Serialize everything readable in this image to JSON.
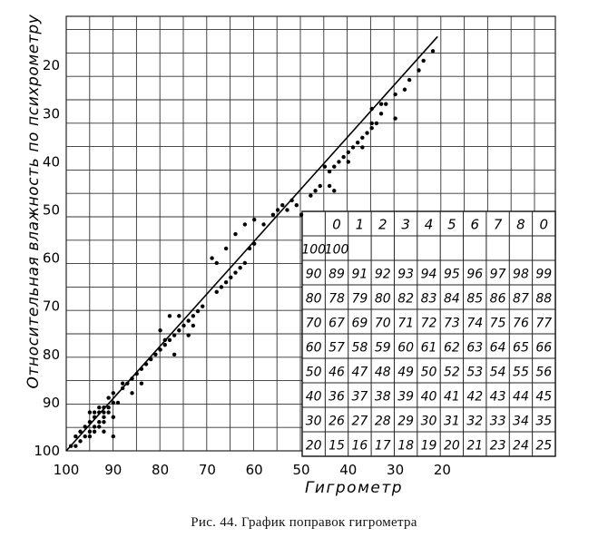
{
  "caption": "Рис. 44. График поправок гигрометра",
  "chart_data": {
    "type": "scatter",
    "xlabel": "Гигрометр",
    "ylabel": "Относительная влажность по психрометру",
    "xlim": [
      100,
      16
    ],
    "ylim": [
      100,
      10
    ],
    "x_ticks": [
      "100",
      "90",
      "80",
      "70",
      "60",
      "50",
      "40",
      "30",
      "20"
    ],
    "y_ticks": [
      "20",
      "30",
      "40",
      "50",
      "60",
      "70",
      "80",
      "90",
      "100"
    ],
    "grid": true,
    "series": [
      {
        "kind": "points",
        "points": [
          [
            99,
            99
          ],
          [
            98,
            99
          ],
          [
            97,
            98
          ],
          [
            98,
            97
          ],
          [
            96,
            97
          ],
          [
            97,
            96
          ],
          [
            95,
            96
          ],
          [
            96,
            95
          ],
          [
            94,
            95
          ],
          [
            95,
            94
          ],
          [
            93,
            94
          ],
          [
            94,
            93
          ],
          [
            92,
            92
          ],
          [
            93,
            92
          ],
          [
            91,
            91
          ],
          [
            92,
            91
          ],
          [
            90,
            90
          ],
          [
            91,
            89
          ],
          [
            92,
            93
          ],
          [
            93,
            95
          ],
          [
            94,
            96
          ],
          [
            95,
            97
          ],
          [
            93,
            91
          ],
          [
            92,
            94
          ],
          [
            91,
            92
          ],
          [
            90,
            93
          ],
          [
            89,
            90
          ],
          [
            90,
            88
          ],
          [
            88,
            87
          ],
          [
            87,
            86
          ],
          [
            86,
            85
          ],
          [
            85,
            84
          ],
          [
            84,
            83
          ],
          [
            83,
            82
          ],
          [
            82,
            81
          ],
          [
            84,
            86
          ],
          [
            86,
            88
          ],
          [
            88,
            86
          ],
          [
            90,
            97
          ],
          [
            94,
            92
          ],
          [
            95,
            92
          ],
          [
            92,
            96
          ],
          [
            80,
            79
          ],
          [
            81,
            80
          ],
          [
            79,
            78
          ],
          [
            78,
            77
          ],
          [
            77,
            76
          ],
          [
            76,
            75
          ],
          [
            75,
            74
          ],
          [
            74,
            73
          ],
          [
            73,
            72
          ],
          [
            72,
            71
          ],
          [
            71,
            70
          ],
          [
            79,
            77
          ],
          [
            78,
            72
          ],
          [
            80,
            75
          ],
          [
            77,
            80
          ],
          [
            76,
            72
          ],
          [
            74,
            76
          ],
          [
            73,
            74
          ],
          [
            68,
            67
          ],
          [
            67,
            66
          ],
          [
            66,
            65
          ],
          [
            65,
            64
          ],
          [
            64,
            63
          ],
          [
            63,
            62
          ],
          [
            62,
            61
          ],
          [
            61,
            58
          ],
          [
            60,
            57
          ],
          [
            69,
            60
          ],
          [
            68,
            61
          ],
          [
            66,
            58
          ],
          [
            64,
            55
          ],
          [
            62,
            53
          ],
          [
            60,
            52
          ],
          [
            58,
            53
          ],
          [
            56,
            51
          ],
          [
            55,
            50
          ],
          [
            54,
            49
          ],
          [
            53,
            50
          ],
          [
            52,
            48
          ],
          [
            51,
            49
          ],
          [
            50,
            51
          ],
          [
            48,
            47
          ],
          [
            47,
            46
          ],
          [
            46,
            45
          ],
          [
            44,
            42
          ],
          [
            43,
            41
          ],
          [
            42,
            40
          ],
          [
            41,
            39
          ],
          [
            40,
            38
          ],
          [
            39,
            37
          ],
          [
            38,
            36
          ],
          [
            37,
            35
          ],
          [
            36,
            34
          ],
          [
            35,
            33
          ],
          [
            34,
            32
          ],
          [
            33,
            30
          ],
          [
            32,
            28
          ],
          [
            45,
            41
          ],
          [
            44,
            45
          ],
          [
            43,
            46
          ],
          [
            40,
            40
          ],
          [
            37,
            37
          ],
          [
            35,
            29
          ],
          [
            30,
            31
          ],
          [
            28,
            25
          ],
          [
            27,
            23
          ],
          [
            25,
            21
          ],
          [
            24,
            19
          ],
          [
            22,
            17
          ],
          [
            35,
            32
          ],
          [
            33,
            28
          ],
          [
            30,
            26
          ]
        ]
      },
      {
        "kind": "line",
        "points": [
          [
            100,
            100
          ],
          [
            21,
            14
          ]
        ]
      }
    ],
    "table": {
      "header": [
        "0",
        "1",
        "2",
        "3",
        "4",
        "5",
        "6",
        "7",
        "8",
        "0"
      ],
      "rows": [
        {
          "label": "100",
          "values": [
            "100",
            "",
            "",
            "",
            "",
            "",
            "",
            "",
            "",
            ""
          ]
        },
        {
          "label": "90",
          "values": [
            "89",
            "91",
            "92",
            "93",
            "94",
            "95",
            "96",
            "97",
            "98",
            "99"
          ]
        },
        {
          "label": "80",
          "values": [
            "78",
            "79",
            "80",
            "82",
            "83",
            "84",
            "85",
            "86",
            "87",
            "88"
          ]
        },
        {
          "label": "70",
          "values": [
            "67",
            "69",
            "70",
            "71",
            "72",
            "73",
            "74",
            "75",
            "76",
            "77"
          ]
        },
        {
          "label": "60",
          "values": [
            "57",
            "58",
            "59",
            "60",
            "61",
            "62",
            "63",
            "64",
            "65",
            "66"
          ]
        },
        {
          "label": "50",
          "values": [
            "46",
            "47",
            "48",
            "49",
            "50",
            "52",
            "53",
            "54",
            "55",
            "56"
          ]
        },
        {
          "label": "40",
          "values": [
            "36",
            "37",
            "38",
            "39",
            "40",
            "41",
            "42",
            "43",
            "44",
            "45"
          ]
        },
        {
          "label": "30",
          "values": [
            "26",
            "27",
            "28",
            "29",
            "30",
            "31",
            "32",
            "33",
            "34",
            "35"
          ]
        },
        {
          "label": "20",
          "values": [
            "15",
            "16",
            "17",
            "18",
            "19",
            "20",
            "21",
            "23",
            "24",
            "25"
          ]
        }
      ]
    }
  }
}
